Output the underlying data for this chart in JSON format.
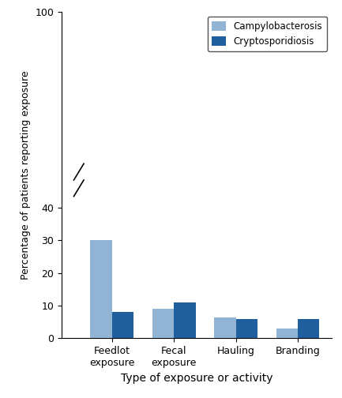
{
  "categories": [
    "Feedlot\nexposure",
    "Fecal\nexposure",
    "Hauling",
    "Branding"
  ],
  "campylobacterosis": [
    30,
    9,
    6.5,
    3
  ],
  "cryptosporidiosis": [
    8,
    11,
    6,
    6
  ],
  "campylo_color": "#92b4d4",
  "crypto_color": "#1f5f9e",
  "xlabel": "Type of exposure or activity",
  "ylabel": "Percentage of patients reporting exposure",
  "ylim": [
    0,
    100
  ],
  "ytick_vals": [
    0,
    10,
    20,
    30,
    40,
    100
  ],
  "ytick_labels": [
    "0",
    "10",
    "20",
    "30",
    "40",
    "100"
  ],
  "legend_labels": [
    "Campylobacterosis",
    "Cryptosporidiosis"
  ],
  "bar_width": 0.35,
  "background_color": "#ffffff",
  "legend_box_color": "#ffffff",
  "legend_edge_color": "#555555"
}
